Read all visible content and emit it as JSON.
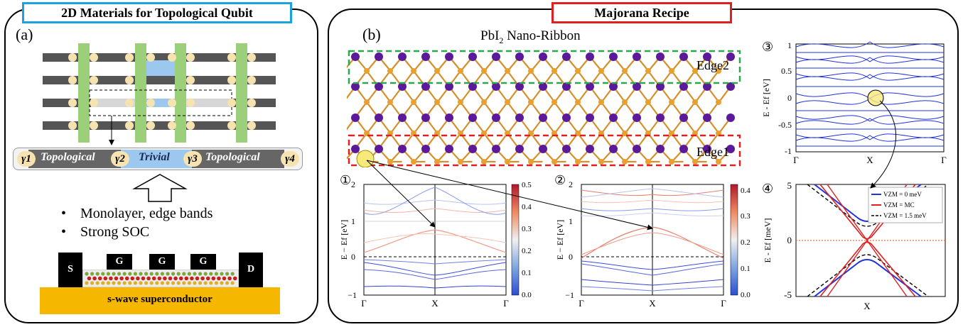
{
  "left": {
    "header": "2D Materials for Topological Qubit",
    "label": "(a)",
    "chain": {
      "gamma1": "γ1",
      "topo1": "Topological",
      "gamma2": "γ2",
      "trivial": "Trivial",
      "gamma3": "γ3",
      "topo2": "Topological",
      "gamma4": "γ4"
    },
    "bullets": [
      "Monolayer, edge bands",
      "Strong SOC"
    ],
    "device": {
      "s": "S",
      "g1": "G",
      "g2": "G",
      "g3": "G",
      "d": "D",
      "substrate": "s-wave superconductor"
    }
  },
  "right": {
    "header": "Majorana Recipe",
    "label": "(b)",
    "ribbon_title_main": "PbI",
    "ribbon_title_sub": "2",
    "ribbon_title_rest": " Nano-Ribbon",
    "edge2": "Edge2",
    "edge1": "Edge1",
    "plot1": {
      "marker": "①",
      "ylabel": "E − Ef [eV]",
      "yticks": [
        "2",
        "1",
        "0",
        "−1"
      ],
      "xticks": [
        "Γ",
        "X",
        "Γ"
      ],
      "cbar": [
        "0.5",
        "0.4",
        "0.3",
        "0.2",
        "0.1",
        "0.0"
      ]
    },
    "plot2": {
      "marker": "②",
      "ylabel": "E − Ef [eV]",
      "yticks": [
        "2",
        "1",
        "0",
        "−1"
      ],
      "xticks": [
        "Γ",
        "X",
        "Γ"
      ],
      "cbar": [
        "0.4",
        "0.3",
        "0.2",
        "0.1",
        "0.0"
      ]
    },
    "plot3": {
      "marker": "③",
      "ylabel": "E - Ef [eV]",
      "yticks": [
        "1",
        "0.5",
        "0",
        "-0.5",
        "-1"
      ],
      "xticks": [
        "Γ",
        "X",
        "Γ"
      ]
    },
    "plot4": {
      "marker": "④",
      "ylabel": "E - Ef [meV]",
      "yticks": [
        "5",
        "0",
        "-5"
      ],
      "xticks": [
        "X"
      ],
      "legend": [
        "VZM = 0 meV",
        "VZM = MC",
        "VZM = 1.5 meV"
      ]
    }
  },
  "colors": {
    "header_left": "#1aa3e0",
    "header_right": "#e02020",
    "edge2_box": "#2aa84a",
    "edge1_box": "#e02020",
    "band_blue": "#2233dd",
    "gold": "#f5b700",
    "green_bar": "#9ccf7a"
  }
}
